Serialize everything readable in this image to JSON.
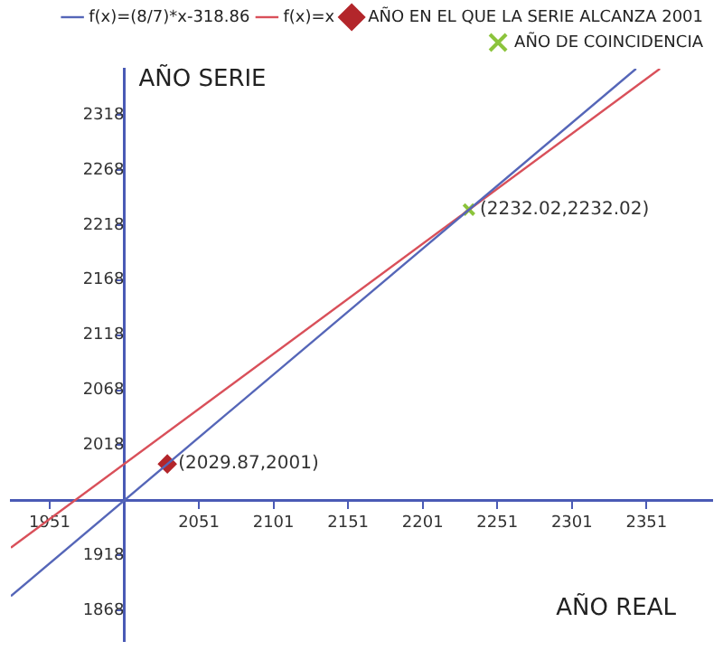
{
  "chart_data": {
    "type": "line",
    "xlabel": "AÑO REAL",
    "ylabel": "AÑO SERIE",
    "xlim": [
      1925,
      2395
    ],
    "ylim": [
      1840,
      2360
    ],
    "xticks": [
      1951,
      2051,
      2101,
      2151,
      2201,
      2251,
      2301,
      2351
    ],
    "yticks": [
      1868,
      1918,
      2018,
      2068,
      2118,
      2168,
      2218,
      2268,
      2318
    ],
    "grid": false,
    "legend": "top right",
    "series": [
      {
        "name": "f(x)=(8/7)*x-318.86",
        "color": "#5566b8",
        "marker": "none",
        "x": [
          1925,
          2344
        ],
        "values": [
          1881,
          2360
        ]
      },
      {
        "name": "f(x)=x",
        "color": "#d9505a",
        "marker": "none",
        "x": [
          1925,
          2360
        ],
        "values": [
          1925,
          2360
        ]
      },
      {
        "name": "AÑO EN EL QUE LA SERIE ALCANZA 2001",
        "color": "#b3262b",
        "type": "scatter",
        "marker": "diamond",
        "x": [
          2029.87
        ],
        "values": [
          2001
        ]
      },
      {
        "name": "AÑO DE COINCIDENCIA",
        "color": "#8cc43c",
        "type": "scatter",
        "marker": "cross",
        "x": [
          2232
        ],
        "values": [
          2232
        ]
      }
    ],
    "annotations": [
      {
        "text": "(2029.87,2001)",
        "x": 2029.87,
        "y": 2001
      },
      {
        "text": "(2232.02,2232.02)",
        "x": 2232.02,
        "y": 2232.02
      }
    ]
  }
}
